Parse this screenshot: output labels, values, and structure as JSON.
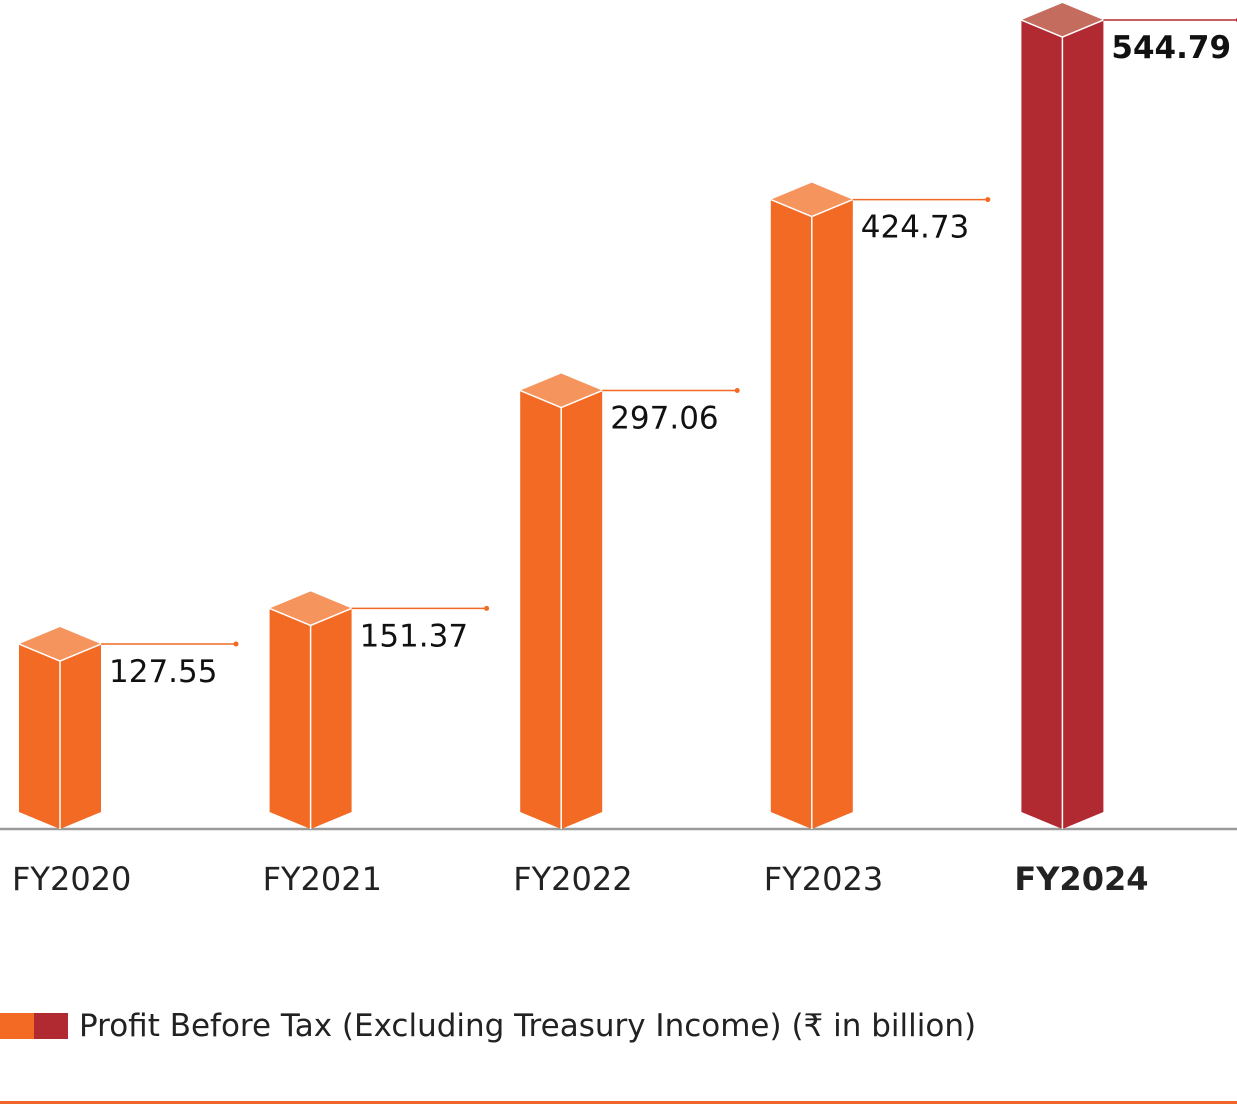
{
  "chart_data": {
    "type": "bar",
    "categories": [
      "FY2020",
      "FY2021",
      "FY2022",
      "FY2023",
      "FY2024"
    ],
    "values": [
      127.55,
      151.37,
      297.06,
      424.73,
      544.79
    ],
    "value_labels": [
      "127.55",
      "151.37",
      "297.06",
      "424.73",
      "544.79"
    ],
    "highlight_category": "FY2024",
    "legend": "Profit Before Tax (Excluding Treasury Income) (₹ in billion)",
    "legend_placement": "bottom-left",
    "grid": false,
    "style": "3d-column",
    "colors": {
      "default": "#f26a24",
      "default_top": "#f5945c",
      "highlight": "#b22a31",
      "highlight_top": "#c46c5e",
      "axis": "#9a9a9a"
    }
  }
}
